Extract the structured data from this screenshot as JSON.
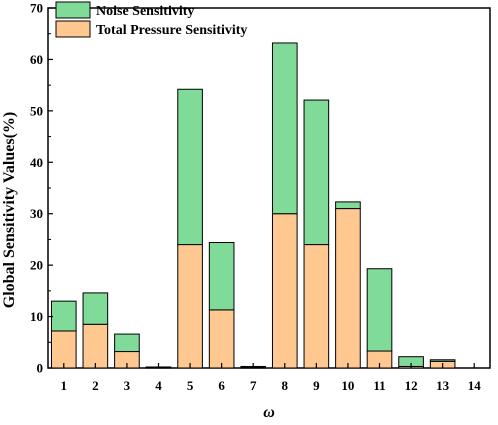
{
  "chart_data": {
    "type": "bar",
    "stacked": true,
    "categories": [
      "1",
      "2",
      "3",
      "4",
      "5",
      "6",
      "7",
      "8",
      "9",
      "10",
      "11",
      "12",
      "13",
      "14"
    ],
    "series": [
      {
        "name": "Total Pressure Sensitivity",
        "color": "#FFC890",
        "values": [
          7.2,
          8.5,
          3.2,
          0.1,
          24.0,
          11.3,
          0.1,
          30.0,
          24.0,
          31.0,
          3.3,
          0.3,
          1.3,
          0.0
        ]
      },
      {
        "name": "Noise Sensitivity",
        "color": "#80DA98",
        "values": [
          5.8,
          6.1,
          3.4,
          0.1,
          30.2,
          13.1,
          0.2,
          33.2,
          28.1,
          1.3,
          16.0,
          1.9,
          0.3,
          0.0
        ]
      }
    ],
    "legend_order": [
      "Noise Sensitivity",
      "Total Pressure Sensitivity"
    ],
    "legend_position": "top-left",
    "xlabel": "ω",
    "ylabel": "Global Sensitivity Values(%)",
    "ylim": [
      0,
      70
    ],
    "yticks": [
      0,
      10,
      20,
      30,
      40,
      50,
      60,
      70
    ],
    "grid": false
  }
}
